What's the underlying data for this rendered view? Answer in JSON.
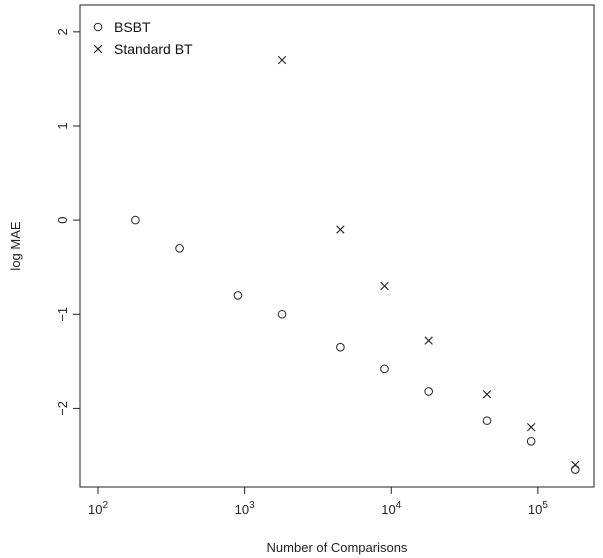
{
  "chart_data": {
    "type": "scatter",
    "title": "",
    "xlabel": "Number of Comparisons",
    "ylabel": "log MAE",
    "x_scale": "log10",
    "xlim": [
      100,
      200000
    ],
    "ylim": [
      -2.75,
      2.2
    ],
    "x_ticks": [
      {
        "value": 100,
        "base": "10",
        "exp": "2"
      },
      {
        "value": 1000,
        "base": "10",
        "exp": "3"
      },
      {
        "value": 10000,
        "base": "10",
        "exp": "4"
      },
      {
        "value": 100000,
        "base": "10",
        "exp": "5"
      }
    ],
    "y_ticks": [
      {
        "value": -2,
        "label": "−2"
      },
      {
        "value": -1,
        "label": "−1"
      },
      {
        "value": 0,
        "label": "0"
      },
      {
        "value": 1,
        "label": "1"
      },
      {
        "value": 2,
        "label": "2"
      }
    ],
    "grid": false,
    "legend_position": "top-left",
    "series": [
      {
        "name": "BSBT",
        "marker": "circle",
        "points": [
          {
            "x": 180,
            "y": 0.0
          },
          {
            "x": 360,
            "y": -0.3
          },
          {
            "x": 900,
            "y": -0.8
          },
          {
            "x": 1800,
            "y": -1.0
          },
          {
            "x": 4500,
            "y": -1.35
          },
          {
            "x": 9000,
            "y": -1.58
          },
          {
            "x": 18000,
            "y": -1.82
          },
          {
            "x": 45000,
            "y": -2.13
          },
          {
            "x": 90000,
            "y": -2.35
          },
          {
            "x": 180000,
            "y": -2.65
          }
        ]
      },
      {
        "name": "Standard BT",
        "marker": "cross",
        "points": [
          {
            "x": 1800,
            "y": 1.7
          },
          {
            "x": 4500,
            "y": -0.1
          },
          {
            "x": 9000,
            "y": -0.7
          },
          {
            "x": 18000,
            "y": -1.28
          },
          {
            "x": 45000,
            "y": -1.85
          },
          {
            "x": 90000,
            "y": -2.2
          },
          {
            "x": 180000,
            "y": -2.6
          }
        ]
      }
    ]
  }
}
